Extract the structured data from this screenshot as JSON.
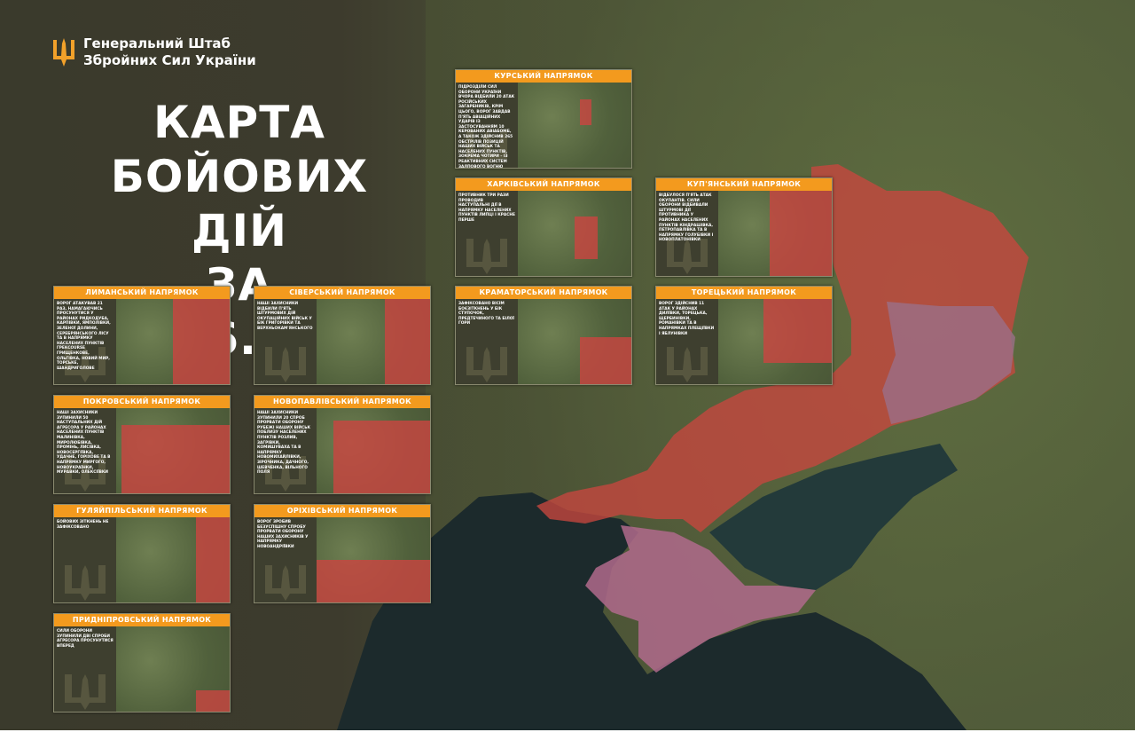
{
  "header": {
    "org_line1": "Генеральний Штаб",
    "org_line2": "Збройних Сил України",
    "logo_icon": "trident-icon"
  },
  "title": {
    "line1": "КАРТА",
    "line2": "БОЙОВИХ ДІЙ",
    "line3": "ЗА 14.06.2025"
  },
  "colors": {
    "accent": "#f39a1e",
    "occupied": "#c8463f",
    "occupied_before_2022": "#9b6f88",
    "background": "#3d3b2d"
  },
  "cards": [
    {
      "id": "kursk",
      "title": "КУРСЬКИЙ НАПРЯМОК",
      "text": "Підрозділи Сил оборони України вчора відбили 20 атак російських загарбників, крім цього, ворог завдав п'ять авіаційних ударів із застосуванням 10 керованих авіабомб, а також здійснив 265 обстрілів позицій наших військ та населених пунктів, зокрема чотири – із реактивних систем залпового вогню"
    },
    {
      "id": "kharkiv",
      "title": "ХАРКІВСЬКИЙ НАПРЯМОК",
      "text": "Противник три рази проводив наступальні дії в напрямку населених пунктів Липці і Красне Перше"
    },
    {
      "id": "kupiansk",
      "title": "КУП'ЯНСЬКИЙ НАПРЯМОК",
      "text": "Відбулося п'ять атак окупантів. Сили оборони відбивали штурмові дії противника у районах населених пунктів Кіндрашівка, Петропавлівка та в напрямку Голубівки і Новоплатонівки"
    },
    {
      "id": "kramatorsk",
      "title": "КРАМАТОРСЬКИЙ НАПРЯМОК",
      "text": "Зафіксовано вісім боєзіткнень у бік Ступочок, Предтечиного та Білої Гори"
    },
    {
      "id": "toretsk",
      "title": "ТОРЕЦЬКИЙ НАПРЯМОК",
      "text": "Ворог здійснив 11 атак у районах Дилївки, Торецька, Щербинівки, Романівки та в напрямках Плещіївки і Яблунівки"
    },
    {
      "id": "lyman",
      "title": "ЛИМАНСЬКИЙ НАПРЯМОК",
      "text": "Ворог атакував 21 раз, намагаючись просунутися у районах Ридкодуба, Карпівки, Ямполівки, Зеленої Долини, Серебрянського лісу та в напрямку населених пунктів Грекcourse Грищенкове, Ольгівка, Новий Мир, Торське, Шандриголове"
    },
    {
      "id": "siversk",
      "title": "СІВЕРСЬКИЙ НАПРЯМОК",
      "text": "Наші захисники відбили п'ять штурмових дій окупаційних військ у бік Григорівки та Верхньокам'янського"
    },
    {
      "id": "pokrovsk",
      "title": "ПОКРОВСЬКИЙ НАПРЯМОК",
      "text": "Наші захисники зупинили 50 наступальних дій агресора у районах населених пунктів Малинівка, Миролюбівка, Промінь, Лисівка, Новосергіївка, Удачне, Горіхове та в напрямку Миргого, Новоукраїнки, Муравки, Олексіївки"
    },
    {
      "id": "novopavlivka",
      "title": "НОВОПАВЛІВСЬКИЙ НАПРЯМОК",
      "text": "Наші захисники зупинили 20 спроб прорвати оборону рубежі наших військ поблизу населених пунктів Розлив, Загрівки, Комишуваха та в напрямку Новомихайлівки, Зірочника, Дачного, Шевченка, Вільного Поля"
    },
    {
      "id": "huliaipole",
      "title": "ГУЛЯЙПІЛЬСЬКИЙ НАПРЯМОК",
      "text": "Бойових зіткнень не зафіксовано"
    },
    {
      "id": "orikhiv",
      "title": "ОРІХІВСЬКИЙ НАПРЯМОК",
      "text": "Ворог зробив безуспішну спробу прорвати оборону наших захисників у напрямку Новоандріївки"
    },
    {
      "id": "prydniprovskyi",
      "title": "ПРИДНІПРОВСЬКИЙ НАПРЯМОК",
      "text": "Сили оборони зупинили дві спроби агресора просунутися вперед"
    }
  ]
}
